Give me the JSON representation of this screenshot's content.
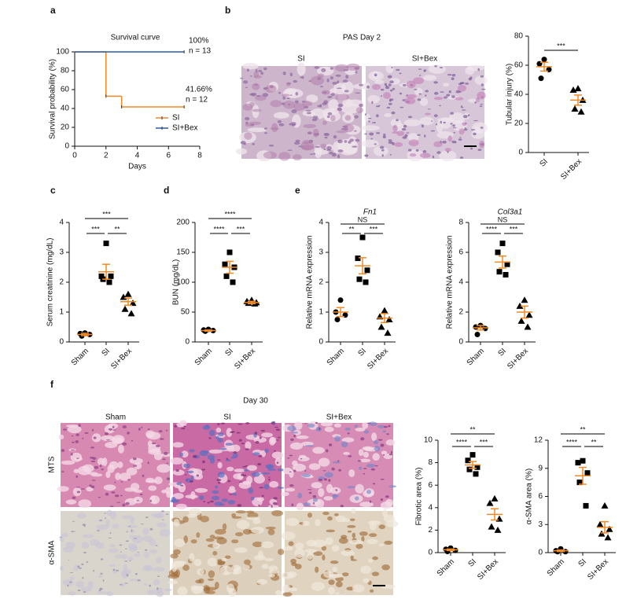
{
  "panel_labels": [
    "a",
    "b",
    "c",
    "d",
    "e",
    "f"
  ],
  "micrographs": {
    "b": {
      "title": "PAS Day 2",
      "columns": [
        "SI",
        "SI+Bex"
      ]
    },
    "f": {
      "title": "Day 30",
      "columns": [
        "Sham",
        "SI",
        "SI+Bex"
      ],
      "rows": [
        "MTS",
        "α-SMA"
      ]
    }
  },
  "chart_data": [
    {
      "type": "step",
      "title": "Survival curve",
      "xlabel": "Days",
      "ylabel": "Survival probability (%)",
      "xlim": [
        0,
        8
      ],
      "xticks": [
        0,
        2,
        4,
        6,
        8
      ],
      "ylim": [
        0,
        100
      ],
      "yticks": [
        0,
        20,
        40,
        60,
        80,
        100
      ],
      "series": [
        {
          "name": "SI",
          "color": "#f08a24",
          "x": [
            0,
            2,
            3,
            7
          ],
          "values": [
            100,
            53,
            41.66,
            41.66
          ]
        },
        {
          "name": "SI+Bex",
          "color": "#2b5aa6",
          "x": [
            0,
            7
          ],
          "values": [
            100,
            100
          ]
        }
      ],
      "annotations": [
        "100%",
        "n = 13",
        "41.66%",
        "n = 12"
      ]
    },
    {
      "type": "dot",
      "ylabel": "Tubular injury (%)",
      "ylim": [
        0,
        80
      ],
      "yticks": [
        0,
        20,
        40,
        60,
        80
      ],
      "color": "#f08a24",
      "groups": [
        {
          "name": "SI",
          "marker": "circle",
          "values": [
            64,
            61,
            57,
            51
          ],
          "mean": 59,
          "sem": 3
        },
        {
          "name": "SI+Bex",
          "marker": "triangle",
          "values": [
            44,
            43,
            36,
            30,
            28
          ],
          "mean": 36,
          "sem": 3.5
        }
      ],
      "comparisons": [
        {
          "groups": [
            "SI",
            "SI+Bex"
          ],
          "label": "***"
        }
      ]
    },
    {
      "type": "dot",
      "ylabel": "Serum creatinine (mg/dL)",
      "ylim": [
        0,
        4
      ],
      "yticks": [
        0,
        1,
        2,
        3,
        4
      ],
      "color": "#f08a24",
      "groups": [
        {
          "name": "Sham",
          "marker": "circle",
          "values": [
            0.3,
            0.28,
            0.25,
            0.2
          ],
          "mean": 0.25,
          "sem": 0.04
        },
        {
          "name": "SI",
          "marker": "square",
          "values": [
            3.3,
            2.2,
            2.2,
            2.1,
            2.0
          ],
          "mean": 2.35,
          "sem": 0.25
        },
        {
          "name": "SI+Bex",
          "marker": "triangle",
          "values": [
            1.6,
            1.5,
            1.3,
            1.1,
            0.95
          ],
          "mean": 1.35,
          "sem": 0.12
        }
      ],
      "comparisons": [
        {
          "groups": [
            "Sham",
            "SI+Bex"
          ],
          "label": "***"
        },
        {
          "groups": [
            "Sham",
            "SI"
          ],
          "label": "***"
        },
        {
          "groups": [
            "SI",
            "SI+Bex"
          ],
          "label": "**"
        }
      ]
    },
    {
      "type": "dot",
      "ylabel": "BUN (mg/dL)",
      "ylim": [
        0,
        200
      ],
      "yticks": [
        0,
        50,
        100,
        150,
        200
      ],
      "color": "#f08a24",
      "groups": [
        {
          "name": "Sham",
          "marker": "circle",
          "values": [
            21,
            20,
            19,
            18
          ],
          "mean": 19,
          "sem": 1
        },
        {
          "name": "SI",
          "marker": "square",
          "values": [
            150,
            130,
            125,
            110,
            100
          ],
          "mean": 125,
          "sem": 10
        },
        {
          "name": "SI+Bex",
          "marker": "triangle",
          "values": [
            70,
            68,
            66,
            65,
            64
          ],
          "mean": 66,
          "sem": 2
        }
      ],
      "comparisons": [
        {
          "groups": [
            "Sham",
            "SI+Bex"
          ],
          "label": "****"
        },
        {
          "groups": [
            "Sham",
            "SI"
          ],
          "label": "****"
        },
        {
          "groups": [
            "SI",
            "SI+Bex"
          ],
          "label": "***"
        }
      ]
    },
    {
      "type": "dot",
      "title": "Fn1",
      "ylabel": "Relative mRNA expression",
      "ylim": [
        0,
        4
      ],
      "yticks": [
        0,
        1,
        2,
        3,
        4
      ],
      "color": "#f08a24",
      "groups": [
        {
          "name": "Sham",
          "marker": "circle",
          "values": [
            1.4,
            1.0,
            0.9,
            0.75
          ],
          "mean": 1.0,
          "sem": 0.15
        },
        {
          "name": "SI",
          "marker": "square",
          "values": [
            3.5,
            2.8,
            2.4,
            2.1,
            2.0
          ],
          "mean": 2.55,
          "sem": 0.27
        },
        {
          "name": "SI+Bex",
          "marker": "triangle",
          "values": [
            1.05,
            0.85,
            0.75,
            0.5,
            0.3
          ],
          "mean": 0.8,
          "sem": 0.15
        }
      ],
      "comparisons": [
        {
          "groups": [
            "Sham",
            "SI+Bex"
          ],
          "label": "NS"
        },
        {
          "groups": [
            "Sham",
            "SI"
          ],
          "label": "**"
        },
        {
          "groups": [
            "SI",
            "SI+Bex"
          ],
          "label": "***"
        }
      ]
    },
    {
      "type": "dot",
      "title": "Col3a1",
      "ylabel": "Relative mRNA expression",
      "ylim": [
        0,
        8
      ],
      "yticks": [
        0,
        2,
        4,
        6,
        8
      ],
      "color": "#f08a24",
      "groups": [
        {
          "name": "Sham",
          "marker": "circle",
          "values": [
            1.1,
            1.0,
            0.9,
            0.5
          ],
          "mean": 0.95,
          "sem": 0.15
        },
        {
          "name": "SI",
          "marker": "square",
          "values": [
            6.6,
            6.0,
            5.2,
            4.7,
            4.5
          ],
          "mean": 5.35,
          "sem": 0.4
        },
        {
          "name": "SI+Bex",
          "marker": "triangle",
          "values": [
            2.8,
            2.4,
            1.8,
            1.4,
            1.0
          ],
          "mean": 2.0,
          "sem": 0.4
        }
      ],
      "comparisons": [
        {
          "groups": [
            "Sham",
            "SI+Bex"
          ],
          "label": "NS"
        },
        {
          "groups": [
            "Sham",
            "SI"
          ],
          "label": "****"
        },
        {
          "groups": [
            "SI",
            "SI+Bex"
          ],
          "label": "***"
        }
      ]
    },
    {
      "type": "dot",
      "ylabel": "Fibrotic area (%)",
      "ylim": [
        0,
        10
      ],
      "yticks": [
        0,
        2,
        4,
        6,
        8,
        10
      ],
      "color": "#f08a24",
      "groups": [
        {
          "name": "Sham",
          "marker": "circle",
          "values": [
            0.4,
            0.3,
            0.2,
            0.1
          ],
          "mean": 0.25,
          "sem": 0.07
        },
        {
          "name": "SI",
          "marker": "square",
          "values": [
            8.7,
            8.2,
            7.6,
            7.4,
            7.0
          ],
          "mean": 7.8,
          "sem": 0.3
        },
        {
          "name": "SI+Bex",
          "marker": "triangle",
          "values": [
            4.8,
            4.4,
            3.0,
            2.3,
            2.0
          ],
          "mean": 3.4,
          "sem": 0.5
        }
      ],
      "comparisons": [
        {
          "groups": [
            "Sham",
            "SI+Bex"
          ],
          "label": "**"
        },
        {
          "groups": [
            "Sham",
            "SI"
          ],
          "label": "****"
        },
        {
          "groups": [
            "SI",
            "SI+Bex"
          ],
          "label": "***"
        }
      ]
    },
    {
      "type": "dot",
      "ylabel": "α-SMA area (%)",
      "ylim": [
        0,
        12
      ],
      "yticks": [
        0,
        3,
        6,
        9,
        12
      ],
      "color": "#f08a24",
      "groups": [
        {
          "name": "Sham",
          "marker": "circle",
          "values": [
            0.4,
            0.2,
            0.1,
            0.1
          ],
          "mean": 0.2,
          "sem": 0.08
        },
        {
          "name": "SI",
          "marker": "square",
          "values": [
            9.8,
            9.6,
            8.5,
            7.5,
            5.0
          ],
          "mean": 8.2,
          "sem": 0.9
        },
        {
          "name": "SI+Bex",
          "marker": "triangle",
          "values": [
            5.0,
            3.0,
            2.5,
            2.0,
            1.6
          ],
          "mean": 2.7,
          "sem": 0.6
        }
      ],
      "comparisons": [
        {
          "groups": [
            "Sham",
            "SI+Bex"
          ],
          "label": "**"
        },
        {
          "groups": [
            "Sham",
            "SI"
          ],
          "label": "****"
        },
        {
          "groups": [
            "SI",
            "SI+Bex"
          ],
          "label": "**"
        }
      ]
    }
  ]
}
